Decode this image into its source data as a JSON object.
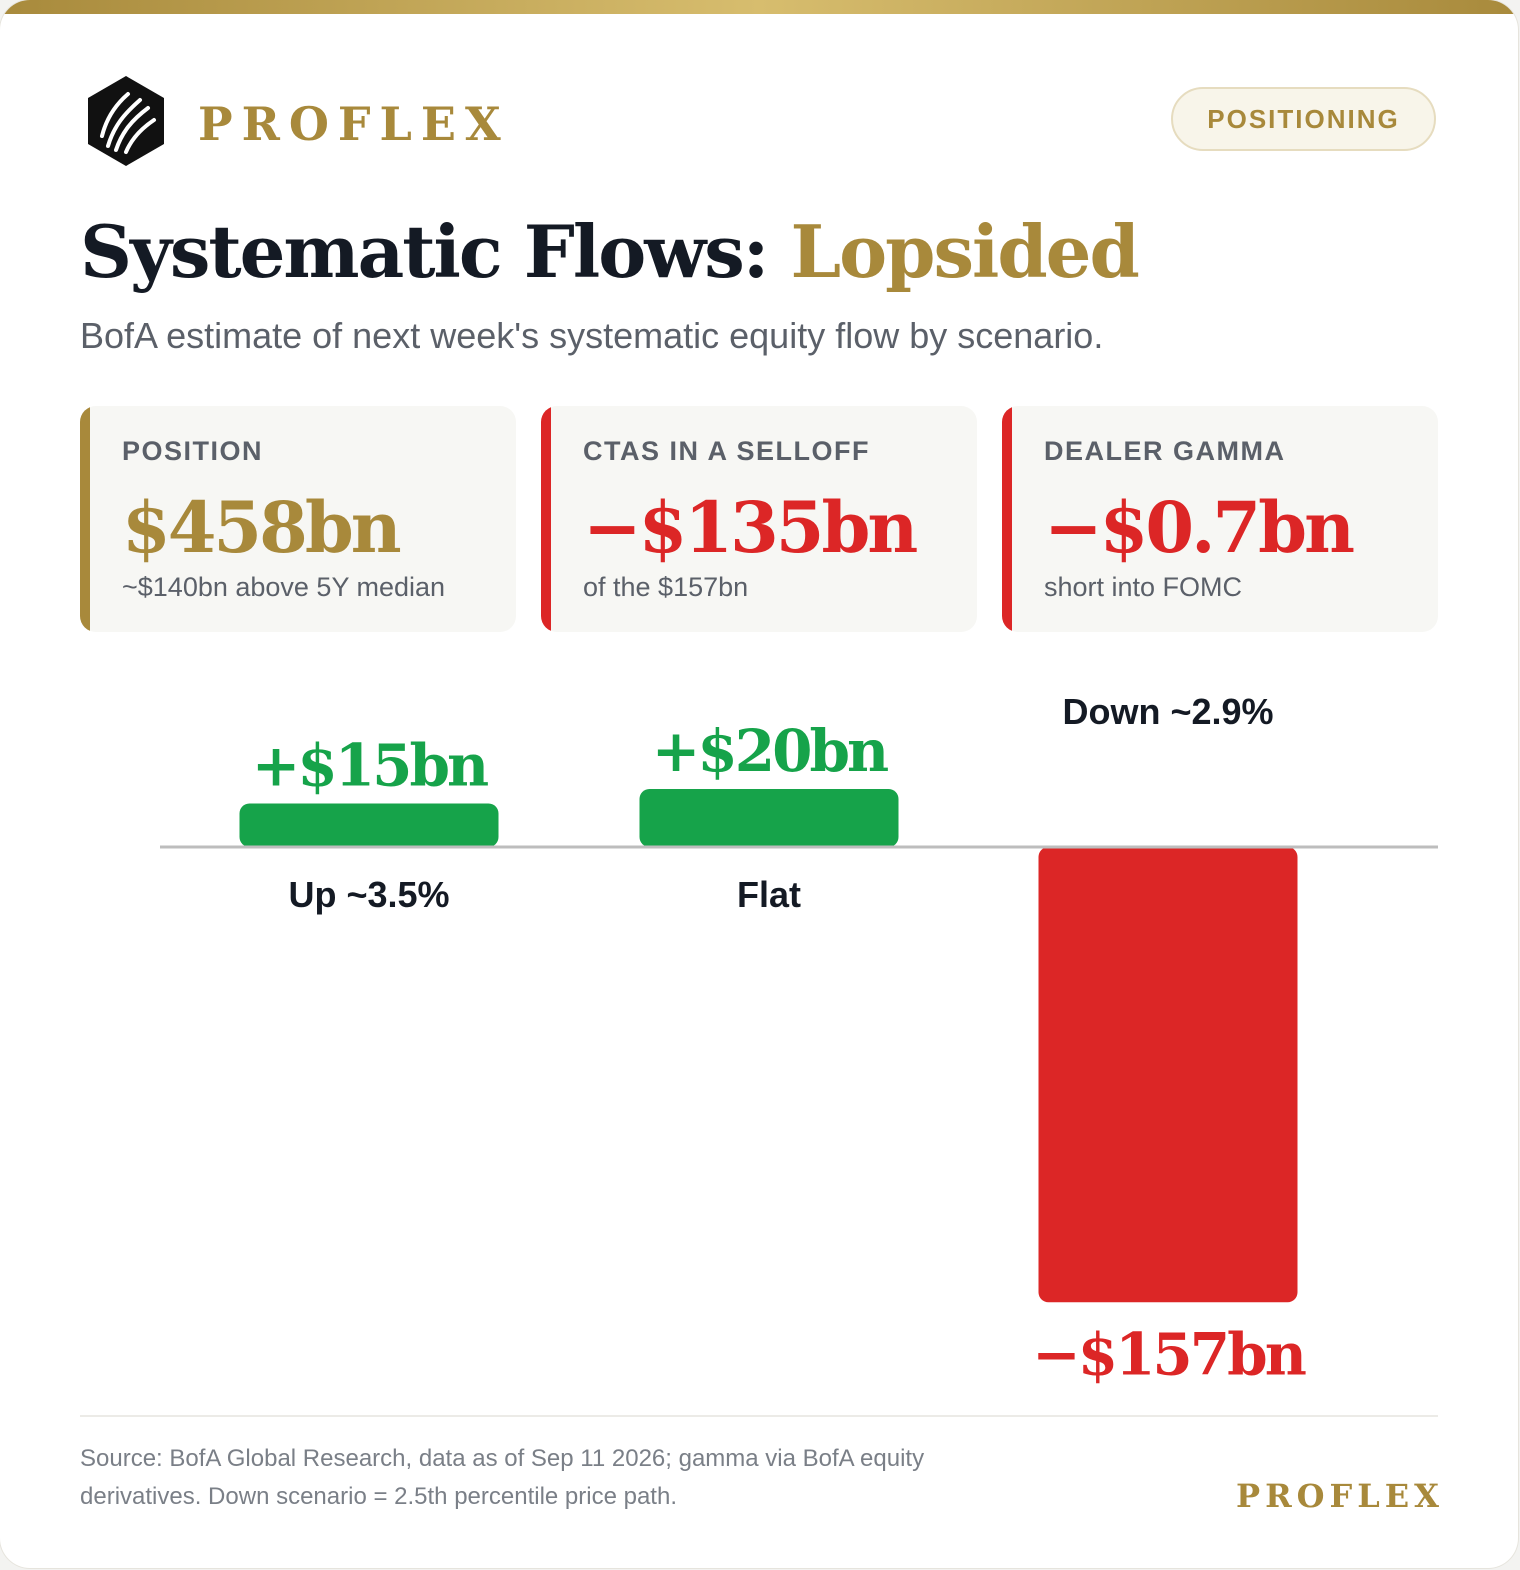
{
  "brand": {
    "name": "PROFLEX",
    "badge": "POSITIONING",
    "footer_name": "PROFLEX",
    "gold": "#a8893b"
  },
  "header": {
    "title": "Systematic Flows:",
    "title_accent": "Lopsided",
    "subtitle": "BofA estimate of next week's systematic equity flow by scenario."
  },
  "stats": [
    {
      "label": "POSITION",
      "value": "$458bn",
      "note": "~$140bn above 5Y median",
      "color": "#a8893b"
    },
    {
      "label": "CTAS IN A SELLOFF",
      "value": "−$135bn",
      "note": "of the $157bn",
      "color": "#dc2626"
    },
    {
      "label": "DEALER GAMMA",
      "value": "−$0.7bn",
      "note": "short into FOMC",
      "color": "#dc2626"
    }
  ],
  "chart_data": {
    "type": "bar",
    "categories": [
      "Up ~3.5%",
      "Flat",
      "Down ~2.9%"
    ],
    "values": [
      15,
      20,
      -157
    ],
    "value_labels": [
      "+$15bn",
      "+$20bn",
      "−$157bn"
    ],
    "positive_color": "#16a34a",
    "negative_color": "#dc2626",
    "unit": "$bn"
  },
  "footer": {
    "source_line1": "Source: BofA Global Research, data as of Sep 11 2026; gamma via BofA equity",
    "source_line2": "derivatives. Down scenario = 2.5th percentile price path."
  }
}
